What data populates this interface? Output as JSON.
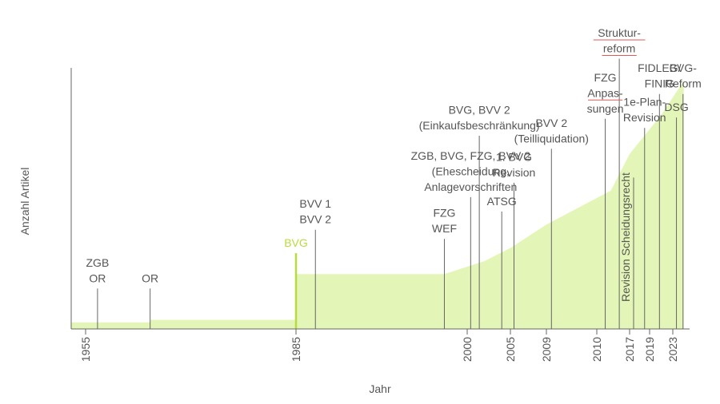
{
  "colors": {
    "area": "#e4f5b8",
    "accent": "#b8dc3c",
    "axis": "#666666",
    "text": "#555555",
    "spell_underline": "#e05a5a"
  },
  "chart_data": {
    "type": "area",
    "title": "",
    "xlabel": "Jahr",
    "ylabel": "Anzahl Artikel",
    "xlim": [
      1954.5,
      2025.3
    ],
    "ylim": [
      0,
      100
    ],
    "grid": false,
    "x_ticks": [
      "1955",
      "1985",
      "2000",
      "2005",
      "2009",
      "2010",
      "2017",
      "2019",
      "2023"
    ],
    "area": {
      "x": [
        1954.5,
        1964.2,
        1964.2,
        1983.5,
        1985.0,
        1985.0,
        1998.0,
        2002,
        2005,
        2009,
        2013,
        2017,
        2021,
        2024.5
      ],
      "y": [
        2.5,
        2.5,
        3.5,
        3.5,
        3.5,
        21.0,
        21.0,
        26,
        31,
        40,
        53,
        67,
        82,
        95
      ]
    },
    "events": [
      {
        "x": 1956.7,
        "top": 15.5,
        "label": [
          "ZGB",
          "OR"
        ],
        "highlight": false
      },
      {
        "x": 1964.2,
        "top": 15.5,
        "label": [
          "OR"
        ],
        "highlight": false
      },
      {
        "x": 1985.0,
        "top": 29.0,
        "label": [
          "BVG"
        ],
        "highlight": true
      },
      {
        "x": 1986.7,
        "top": 38.0,
        "label": [
          "BVV 1",
          "BVV 2"
        ],
        "highlight": false
      },
      {
        "x": 1998.0,
        "top": 34.5,
        "label": [
          "FZG",
          "WEF"
        ],
        "highlight": false
      },
      {
        "x": 2000.4,
        "top": 50.5,
        "label": [
          "ZGB, BVG, FZG, BVV 2",
          "(Ehescheidung,",
          "Anlagevorschriften"
        ],
        "highlight": false
      },
      {
        "x": 2001.4,
        "top": 74.0,
        "label": [
          "BVG, BVV 2",
          "(Einkaufsbeschränkung)"
        ],
        "highlight": false
      },
      {
        "x": 2004.0,
        "top": 45.0,
        "label": [
          "ATSG"
        ],
        "highlight": false
      },
      {
        "x": 2005.4,
        "top": 56.0,
        "label": [
          "1. BVG",
          "Revision"
        ],
        "highlight": false
      },
      {
        "x": 2009.1,
        "top": 69.0,
        "label": [
          "BVV 2",
          "(Teilliquidation)"
        ],
        "highlight": false
      },
      {
        "x": 2011.8,
        "top": 80.5,
        "label": [
          "FZG",
          "Anpas-",
          "sungen"
        ],
        "highlight": false
      },
      {
        "x": 2014.8,
        "top": 103.5,
        "label": [
          "Struktur-",
          "reform"
        ],
        "highlight": false
      },
      {
        "x": 2018.5,
        "top": 77.0,
        "label": [
          "1e-Plan-",
          "Revision"
        ],
        "highlight": false
      },
      {
        "x": 2020.7,
        "top": 90.0,
        "label": [
          "FIDLEG/",
          "FINIG"
        ],
        "highlight": false
      },
      {
        "x": 2023.5,
        "top": 81.0,
        "label": [
          "DSG"
        ],
        "highlight": false
      },
      {
        "x": 2024.4,
        "top": 90.0,
        "label": [
          "BVG-",
          "Reform"
        ],
        "highlight": false
      },
      {
        "x": 2017.4,
        "top": 58.0,
        "label": [
          "Revision Scheidungsrecht"
        ],
        "highlight": false,
        "rotated": true
      }
    ],
    "underlined": [
      "Struktur-",
      "Anpas-"
    ]
  }
}
